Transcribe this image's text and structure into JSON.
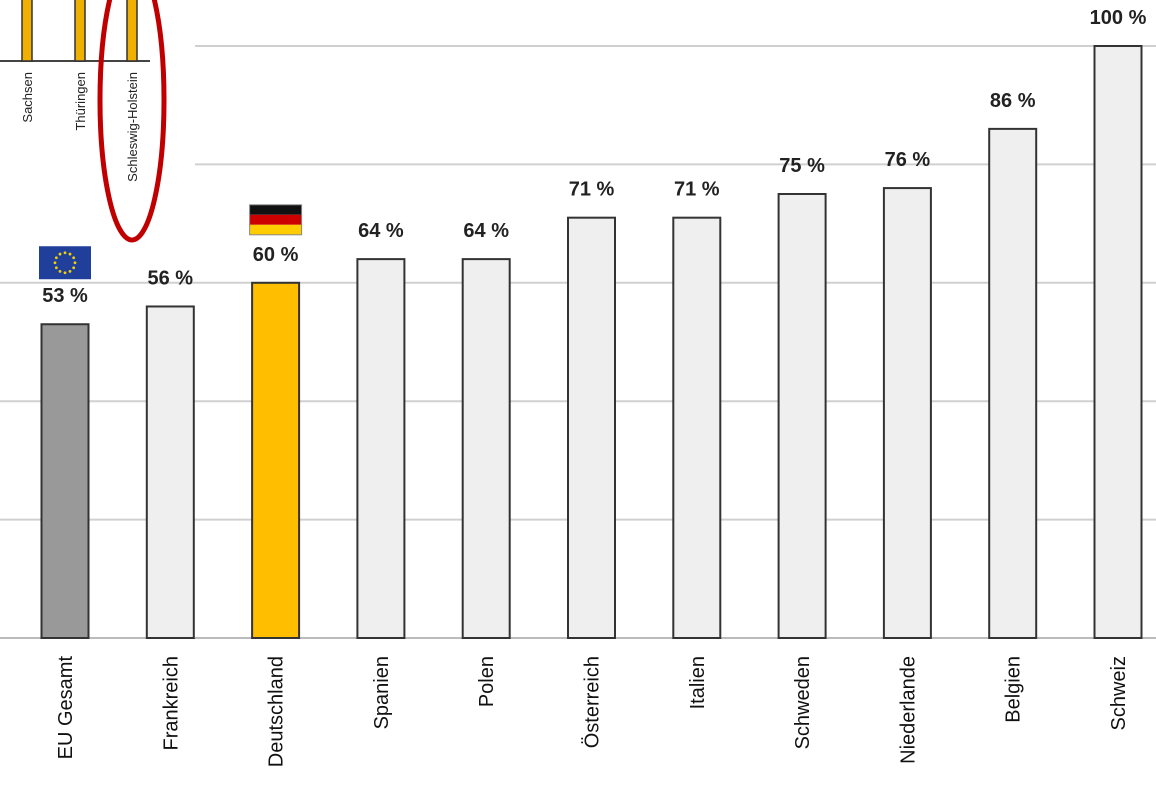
{
  "chart_data": {
    "type": "bar",
    "categories": [
      "EU Gesamt",
      "Frankreich",
      "Deutschland",
      "Spanien",
      "Polen",
      "Österreich",
      "Italien",
      "Schweden",
      "Niederlande",
      "Belgien",
      "Schweiz"
    ],
    "values": [
      53,
      56,
      60,
      64,
      64,
      71,
      71,
      75,
      76,
      86,
      100
    ],
    "value_labels": [
      "53 %",
      "56 %",
      "60 %",
      "64 %",
      "64 %",
      "71 %",
      "71 %",
      "75 %",
      "76 %",
      "86 %",
      "100 %"
    ],
    "ylim": [
      0,
      100
    ],
    "grid": true,
    "title": "",
    "xlabel": "",
    "ylabel": "",
    "colors": {
      "default_bar": "#efefef",
      "eu_bar": "#999999",
      "germany_bar": "#ffbf00",
      "bar_outline": "#333333",
      "grid": "#d0d0d0",
      "highlight_ring": "#c00000"
    },
    "highlight_categories": {
      "EU Gesamt": "eu",
      "Deutschland": "germany"
    }
  },
  "inset": {
    "categories": [
      "Sachsen",
      "Thüringen",
      "Schleswig-Holstein"
    ],
    "circled": "Schleswig-Holstein"
  },
  "flags": [
    {
      "category": "EU Gesamt",
      "icon": "eu-flag-icon"
    },
    {
      "category": "Deutschland",
      "icon": "germany-flag-icon"
    }
  ]
}
